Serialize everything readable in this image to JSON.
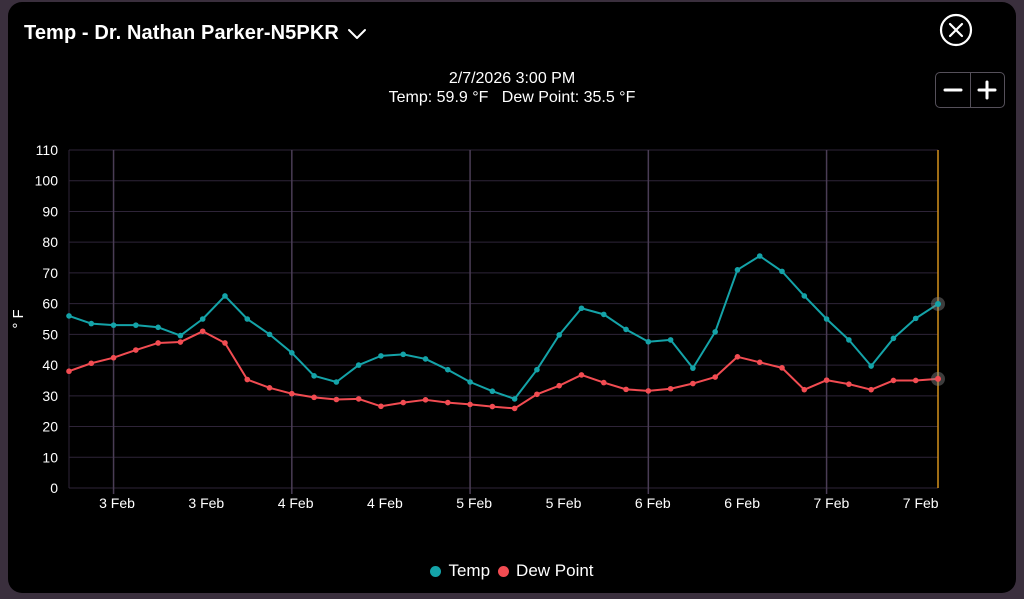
{
  "header": {
    "title": "Temp - Dr. Nathan Parker-N5PKR",
    "datetime": "2/7/2026 3:00 PM",
    "temp_label": "Temp:",
    "temp_value": "59.9 °F",
    "dew_label": "Dew Point:",
    "dew_value": "35.5 °F"
  },
  "icons": {
    "dropdown": "chevron-down-icon",
    "close": "close-circle-icon",
    "zoom_out": "minus-icon",
    "zoom_in": "plus-icon"
  },
  "colors": {
    "temp": "#14a3a8",
    "dew": "#f24c52",
    "cursor": "#d4911c",
    "grid": "#2e2438",
    "day_line": "#4a3d55"
  },
  "chart_data": {
    "type": "line",
    "title": "",
    "xlabel": "",
    "ylabel": "° F",
    "ylim": [
      0,
      110
    ],
    "yticks": [
      0,
      10,
      20,
      30,
      40,
      50,
      60,
      70,
      80,
      90,
      100,
      110
    ],
    "x_tick_labels": [
      "3 Feb",
      "3 Feb",
      "4 Feb",
      "4 Feb",
      "5 Feb",
      "5 Feb",
      "6 Feb",
      "6 Feb",
      "7 Feb",
      "7 Feb"
    ],
    "x_start": "2/2/2026 6:00 PM",
    "x_end": "2/7/2026 3:00 PM",
    "x_interval_hours": 3,
    "grid": true,
    "legend_position": "bottom",
    "selected": {
      "time": "2/7/2026 3:00 PM",
      "temp": 59.9,
      "dew_point": 35.5
    },
    "series": [
      {
        "name": "Temp",
        "values": [
          56,
          53.5,
          53,
          53,
          52.3,
          49.6,
          55,
          62.5,
          55,
          50,
          44,
          36.5,
          34.5,
          40,
          43,
          43.5,
          42,
          38.5,
          34.5,
          31.5,
          29,
          38.5,
          49.8,
          58.5,
          56.5,
          51.6,
          47.6,
          48.2,
          39,
          50.8,
          71,
          75.5,
          70.5,
          62.5,
          55,
          48.2,
          39.7,
          48.7,
          55.2,
          59.9
        ]
      },
      {
        "name": "Dew Point",
        "values": [
          38,
          40.6,
          42.4,
          44.9,
          47.2,
          47.5,
          51,
          47.2,
          35.3,
          32.6,
          30.7,
          29.5,
          28.8,
          29,
          26.6,
          27.8,
          28.7,
          27.8,
          27.2,
          26.5,
          25.9,
          30.5,
          33.3,
          36.8,
          34.3,
          32.1,
          31.6,
          32.3,
          34,
          36.1,
          42.7,
          40.9,
          39.1,
          32,
          35.1,
          33.8,
          32,
          35,
          35,
          35.5
        ]
      }
    ]
  },
  "legend": {
    "temp_label": "Temp",
    "dew_label": "Dew Point"
  }
}
